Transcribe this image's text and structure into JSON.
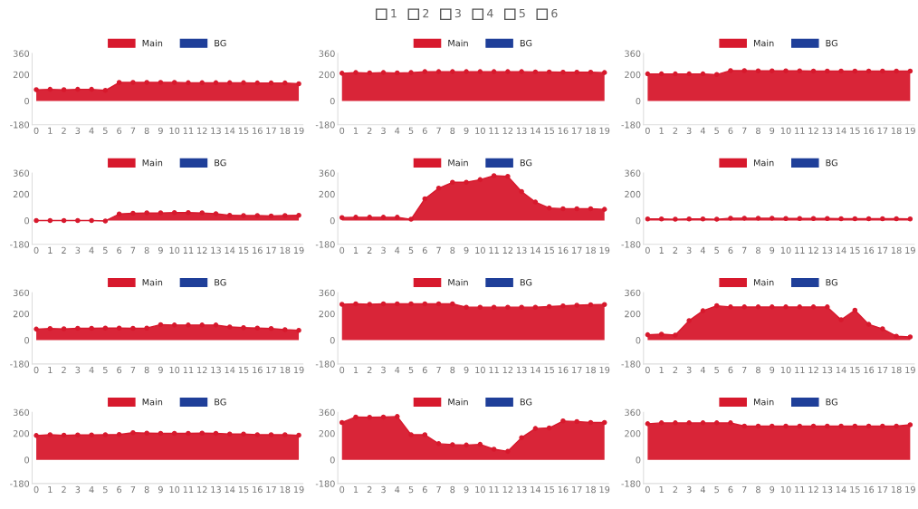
{
  "chart_data": [
    {
      "type": "area",
      "annotations": [
        "1",
        "2",
        "3",
        "4",
        "5",
        "6"
      ],
      "categories": [
        "0",
        "1",
        "2",
        "3",
        "4",
        "5",
        "6",
        "7",
        "8",
        "9",
        "10",
        "11",
        "12",
        "13",
        "14",
        "15",
        "16",
        "17",
        "18",
        "19"
      ],
      "ylim": [
        -180,
        360
      ],
      "yticks": [
        -180,
        0,
        200,
        360
      ],
      "legend": "top",
      "marker": "circle",
      "grid": false,
      "series": [
        {
          "name": "Main",
          "color": "#d7192d",
          "values": [
            85,
            88,
            85,
            88,
            88,
            80,
            140,
            140,
            140,
            140,
            140,
            138,
            138,
            138,
            138,
            138,
            136,
            136,
            136,
            130
          ]
        },
        {
          "name": "BG",
          "color": "#1f3f99",
          "values": [
            null,
            null,
            null,
            null,
            null,
            null,
            null,
            null,
            null,
            null,
            null,
            null,
            null,
            null,
            null,
            null,
            null,
            null,
            null,
            null
          ]
        }
      ]
    },
    {
      "type": "area",
      "categories": [
        "0",
        "1",
        "2",
        "3",
        "4",
        "5",
        "6",
        "7",
        "8",
        "9",
        "10",
        "11",
        "12",
        "13",
        "14",
        "15",
        "16",
        "17",
        "18",
        "19"
      ],
      "ylim": [
        -180,
        360
      ],
      "yticks": [
        -180,
        0,
        200,
        360
      ],
      "legend": "top",
      "marker": "circle",
      "grid": false,
      "series": [
        {
          "name": "Main",
          "color": "#d7192d",
          "values": [
            210,
            215,
            212,
            215,
            212,
            215,
            222,
            222,
            222,
            222,
            222,
            222,
            222,
            222,
            220,
            220,
            218,
            218,
            218,
            215
          ]
        },
        {
          "name": "BG",
          "color": "#1f3f99",
          "values": [
            null,
            null,
            null,
            null,
            null,
            null,
            null,
            null,
            null,
            null,
            null,
            null,
            null,
            null,
            null,
            null,
            null,
            null,
            null,
            null
          ]
        }
      ]
    },
    {
      "type": "area",
      "categories": [
        "0",
        "1",
        "2",
        "3",
        "4",
        "5",
        "6",
        "7",
        "8",
        "9",
        "10",
        "11",
        "12",
        "13",
        "14",
        "15",
        "16",
        "17",
        "18",
        "19"
      ],
      "ylim": [
        -180,
        360
      ],
      "yticks": [
        -180,
        0,
        200,
        360
      ],
      "legend": "top",
      "marker": "circle",
      "grid": false,
      "series": [
        {
          "name": "Main",
          "color": "#d7192d",
          "values": [
            205,
            205,
            205,
            205,
            205,
            200,
            230,
            230,
            228,
            228,
            228,
            228,
            226,
            226,
            226,
            226,
            226,
            226,
            226,
            226
          ]
        },
        {
          "name": "BG",
          "color": "#1f3f99",
          "values": [
            null,
            null,
            null,
            null,
            null,
            null,
            null,
            null,
            null,
            null,
            null,
            null,
            null,
            null,
            null,
            null,
            null,
            null,
            null,
            null
          ]
        }
      ]
    },
    {
      "type": "area",
      "categories": [
        "0",
        "1",
        "2",
        "3",
        "4",
        "5",
        "6",
        "7",
        "8",
        "9",
        "10",
        "11",
        "12",
        "13",
        "14",
        "15",
        "16",
        "17",
        "18",
        "19"
      ],
      "ylim": [
        -180,
        360
      ],
      "yticks": [
        -180,
        0,
        200,
        360
      ],
      "legend": "top",
      "marker": "circle",
      "grid": false,
      "series": [
        {
          "name": "Main",
          "color": "#d7192d",
          "values": [
            0,
            0,
            0,
            0,
            0,
            -3,
            50,
            55,
            58,
            58,
            60,
            60,
            58,
            52,
            40,
            38,
            38,
            35,
            38,
            40
          ]
        },
        {
          "name": "BG",
          "color": "#1f3f99",
          "values": [
            null,
            null,
            null,
            null,
            null,
            null,
            null,
            null,
            null,
            null,
            null,
            null,
            null,
            null,
            null,
            null,
            null,
            null,
            null,
            null
          ]
        }
      ]
    },
    {
      "type": "area",
      "categories": [
        "0",
        "1",
        "2",
        "3",
        "4",
        "5",
        "6",
        "7",
        "8",
        "9",
        "10",
        "11",
        "12",
        "13",
        "14",
        "15",
        "16",
        "17",
        "18",
        "19"
      ],
      "ylim": [
        -180,
        360
      ],
      "yticks": [
        -180,
        0,
        200,
        360
      ],
      "legend": "top",
      "marker": "circle",
      "grid": false,
      "series": [
        {
          "name": "Main",
          "color": "#d7192d",
          "values": [
            23,
            25,
            25,
            25,
            25,
            10,
            165,
            245,
            290,
            290,
            310,
            340,
            335,
            220,
            140,
            95,
            90,
            90,
            90,
            85
          ]
        },
        {
          "name": "BG",
          "color": "#1f3f99",
          "values": [
            null,
            null,
            null,
            null,
            null,
            null,
            null,
            null,
            null,
            null,
            null,
            null,
            null,
            null,
            null,
            null,
            null,
            null,
            null,
            null
          ]
        }
      ]
    },
    {
      "type": "area",
      "categories": [
        "0",
        "1",
        "2",
        "3",
        "4",
        "5",
        "6",
        "7",
        "8",
        "9",
        "10",
        "11",
        "12",
        "13",
        "14",
        "15",
        "16",
        "17",
        "18",
        "19"
      ],
      "ylim": [
        -180,
        360
      ],
      "yticks": [
        -180,
        0,
        200,
        360
      ],
      "legend": "top",
      "marker": "circle",
      "grid": false,
      "series": [
        {
          "name": "Main",
          "color": "#d7192d",
          "values": [
            12,
            12,
            10,
            12,
            12,
            10,
            18,
            18,
            18,
            18,
            16,
            16,
            16,
            16,
            14,
            14,
            14,
            14,
            14,
            12
          ]
        },
        {
          "name": "BG",
          "color": "#1f3f99",
          "values": [
            null,
            null,
            null,
            null,
            null,
            null,
            null,
            null,
            null,
            null,
            null,
            null,
            null,
            null,
            null,
            null,
            null,
            null,
            null,
            null
          ]
        }
      ]
    },
    {
      "type": "area",
      "categories": [
        "0",
        "1",
        "2",
        "3",
        "4",
        "5",
        "6",
        "7",
        "8",
        "9",
        "10",
        "11",
        "12",
        "13",
        "14",
        "15",
        "16",
        "17",
        "18",
        "19"
      ],
      "ylim": [
        -180,
        360
      ],
      "yticks": [
        -180,
        0,
        200,
        360
      ],
      "legend": "top",
      "marker": "circle",
      "grid": false,
      "series": [
        {
          "name": "Main",
          "color": "#d7192d",
          "values": [
            84,
            88,
            86,
            90,
            90,
            92,
            92,
            90,
            92,
            118,
            115,
            115,
            115,
            115,
            100,
            95,
            92,
            88,
            80,
            75
          ]
        },
        {
          "name": "BG",
          "color": "#1f3f99",
          "values": [
            null,
            null,
            null,
            null,
            null,
            null,
            null,
            null,
            null,
            null,
            null,
            null,
            null,
            null,
            null,
            null,
            null,
            null,
            null,
            null
          ]
        }
      ]
    },
    {
      "type": "area",
      "categories": [
        "0",
        "1",
        "2",
        "3",
        "4",
        "5",
        "6",
        "7",
        "8",
        "9",
        "10",
        "11",
        "12",
        "13",
        "14",
        "15",
        "16",
        "17",
        "18",
        "19"
      ],
      "ylim": [
        -180,
        360
      ],
      "yticks": [
        -180,
        0,
        200,
        360
      ],
      "legend": "top",
      "marker": "circle",
      "grid": false,
      "series": [
        {
          "name": "Main",
          "color": "#d7192d",
          "values": [
            272,
            275,
            272,
            275,
            275,
            275,
            275,
            275,
            275,
            250,
            250,
            250,
            250,
            250,
            250,
            255,
            260,
            265,
            268,
            270
          ]
        },
        {
          "name": "BG",
          "color": "#1f3f99",
          "values": [
            null,
            null,
            null,
            null,
            null,
            null,
            null,
            null,
            null,
            null,
            null,
            null,
            null,
            null,
            null,
            null,
            null,
            null,
            null,
            null
          ]
        }
      ]
    },
    {
      "type": "area",
      "categories": [
        "0",
        "1",
        "2",
        "3",
        "4",
        "5",
        "6",
        "7",
        "8",
        "9",
        "10",
        "11",
        "12",
        "13",
        "14",
        "15",
        "16",
        "17",
        "18",
        "19"
      ],
      "ylim": [
        -180,
        360
      ],
      "yticks": [
        -180,
        0,
        200,
        360
      ],
      "legend": "top",
      "marker": "circle",
      "grid": false,
      "series": [
        {
          "name": "Main",
          "color": "#d7192d",
          "values": [
            41,
            45,
            38,
            148,
            223,
            261,
            252,
            252,
            252,
            252,
            252,
            252,
            252,
            252,
            155,
            227,
            120,
            86,
            30,
            25
          ]
        },
        {
          "name": "BG",
          "color": "#1f3f99",
          "values": [
            null,
            null,
            null,
            null,
            null,
            null,
            null,
            null,
            null,
            null,
            null,
            null,
            null,
            null,
            null,
            null,
            null,
            null,
            null,
            null
          ]
        }
      ]
    },
    {
      "type": "area",
      "categories": [
        "0",
        "1",
        "2",
        "3",
        "4",
        "5",
        "6",
        "7",
        "8",
        "9",
        "10",
        "11",
        "12",
        "13",
        "14",
        "15",
        "16",
        "17",
        "18",
        "19"
      ],
      "ylim": [
        -180,
        360
      ],
      "yticks": [
        -180,
        0,
        200,
        360
      ],
      "legend": "top",
      "marker": "circle",
      "grid": false,
      "series": [
        {
          "name": "Main",
          "color": "#d7192d",
          "values": [
            184,
            190,
            186,
            188,
            188,
            190,
            192,
            205,
            202,
            200,
            200,
            200,
            202,
            200,
            195,
            195,
            190,
            190,
            190,
            186
          ]
        },
        {
          "name": "BG",
          "color": "#1f3f99",
          "values": [
            null,
            null,
            null,
            null,
            null,
            null,
            null,
            null,
            null,
            null,
            null,
            null,
            null,
            null,
            null,
            null,
            null,
            null,
            null,
            null
          ]
        }
      ]
    },
    {
      "type": "area",
      "categories": [
        "0",
        "1",
        "2",
        "3",
        "4",
        "5",
        "6",
        "7",
        "8",
        "9",
        "10",
        "11",
        "12",
        "13",
        "14",
        "15",
        "16",
        "17",
        "18",
        "19"
      ],
      "ylim": [
        -180,
        360
      ],
      "yticks": [
        -180,
        0,
        200,
        360
      ],
      "legend": "top",
      "marker": "circle",
      "grid": false,
      "series": [
        {
          "name": "Main",
          "color": "#d7192d",
          "values": [
            283,
            324,
            322,
            324,
            328,
            190,
            190,
            122,
            115,
            112,
            117,
            80,
            64,
            168,
            237,
            241,
            294,
            290,
            283,
            283
          ]
        },
        {
          "name": "BG",
          "color": "#1f3f99",
          "values": [
            null,
            null,
            null,
            null,
            null,
            null,
            null,
            null,
            null,
            null,
            null,
            null,
            null,
            null,
            null,
            null,
            null,
            null,
            null,
            null
          ]
        }
      ]
    },
    {
      "type": "area",
      "categories": [
        "0",
        "1",
        "2",
        "3",
        "4",
        "5",
        "6",
        "7",
        "8",
        "9",
        "10",
        "11",
        "12",
        "13",
        "14",
        "15",
        "16",
        "17",
        "18",
        "19"
      ],
      "ylim": [
        -180,
        360
      ],
      "yticks": [
        -180,
        0,
        200,
        360
      ],
      "legend": "top",
      "marker": "circle",
      "grid": false,
      "series": [
        {
          "name": "Main",
          "color": "#d7192d",
          "values": [
            273,
            280,
            280,
            280,
            280,
            280,
            280,
            255,
            255,
            255,
            255,
            255,
            255,
            255,
            255,
            255,
            255,
            255,
            255,
            265
          ]
        },
        {
          "name": "BG",
          "color": "#1f3f99",
          "values": [
            null,
            null,
            null,
            null,
            null,
            null,
            null,
            null,
            null,
            null,
            null,
            null,
            null,
            null,
            null,
            null,
            null,
            null,
            null,
            null
          ]
        }
      ]
    }
  ]
}
